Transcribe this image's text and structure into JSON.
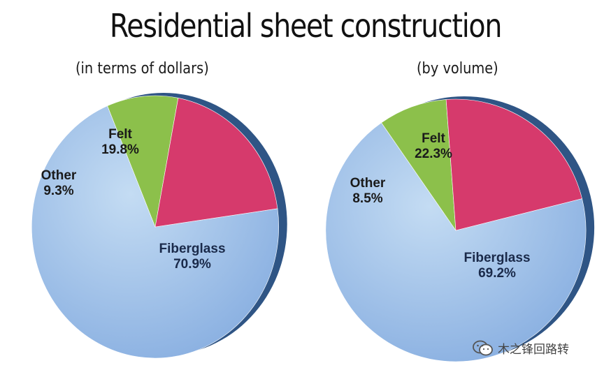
{
  "title": "Residential sheet construction",
  "chart_data": [
    {
      "type": "pie",
      "subtitle": "(in terms of dollars)",
      "slices": [
        {
          "label": "Fiberglass",
          "value": 70.9,
          "display": "70.9%",
          "color": "#9dc3e8"
        },
        {
          "label": "Other",
          "value": 9.3,
          "display": "9.3%",
          "color": "#8cc04b"
        },
        {
          "label": "Felt",
          "value": 19.8,
          "display": "19.8%",
          "color": "#d63a6c"
        }
      ]
    },
    {
      "type": "pie",
      "subtitle": "(by volume)",
      "slices": [
        {
          "label": "Fiberglass",
          "value": 69.2,
          "display": "69.2%",
          "color": "#9dc3e8"
        },
        {
          "label": "Other",
          "value": 8.5,
          "display": "8.5%",
          "color": "#8cc04b"
        },
        {
          "label": "Felt",
          "value": 22.3,
          "display": "22.3%",
          "color": "#d63a6c"
        }
      ]
    }
  ],
  "watermark": {
    "text": "木之锋回路转",
    "icon": "wechat-icon"
  }
}
